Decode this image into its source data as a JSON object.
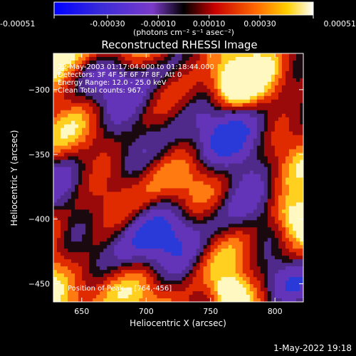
{
  "chart_data": {
    "type": "heatmap",
    "title": "Reconstructed RHESSI Image",
    "xlabel": "Heliocentric X (arcsec)",
    "ylabel": "Heliocentric Y (arcsec)",
    "xlim": [
      628,
      822
    ],
    "ylim": [
      -464,
      -272
    ],
    "xticks": [
      650,
      700,
      750,
      800
    ],
    "yticks": [
      -300,
      -350,
      -400,
      -450
    ],
    "colorbar": {
      "range": [
        -0.00051,
        0.00051
      ],
      "ticks": [
        "-0.00051",
        "-0.00030",
        "-0.00010",
        "0.00010",
        "0.00030",
        "0.00051"
      ],
      "unit_label": "(photons cm⁻² s⁻¹ asec⁻²)"
    },
    "annotations": [
      "22-May-2003 01:17:04.000 to 01:18:44.000",
      "Detectors: 3F 4F 5F 6F 7F 8F, Att 0",
      "Energy Range: 12.0 - 25.0 keV",
      "Clean     Total counts: 967.",
      "Position of Peak = [764,-456]"
    ],
    "peak": {
      "x": 764,
      "y": -456
    }
  },
  "footer": {
    "timestamp": "1-May-2022 19:18"
  }
}
